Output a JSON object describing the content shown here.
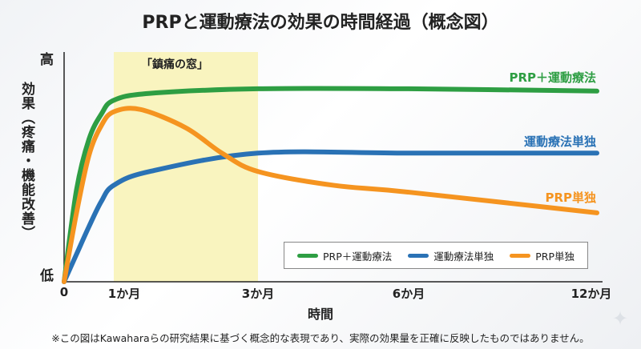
{
  "title": "PRPと運動療法の効果の時間経過（概念図）",
  "colors": {
    "green": "#2e9e43",
    "blue": "#2a72b5",
    "orange": "#f59420",
    "window": "#f8f3b8"
  },
  "chart_data": {
    "type": "line",
    "title": "PRPと運動療法の効果の時間経過（概念図）",
    "xlabel": "時間",
    "ylabel": "効果（疼痛・機能改善）",
    "y_tick_labels": {
      "low": "低",
      "high": "高"
    },
    "ylim": [
      0,
      100
    ],
    "x_ticks": [
      {
        "value": 0,
        "label": "0"
      },
      {
        "value": 1,
        "label": "1か月"
      },
      {
        "value": 3,
        "label": "3か月"
      },
      {
        "value": 6,
        "label": "6か月"
      },
      {
        "value": 12,
        "label": "12か月"
      }
    ],
    "xlim": [
      0,
      12
    ],
    "shaded_region": {
      "from": 1,
      "to": 3,
      "label": "「鎮痛の窓」"
    },
    "series": [
      {
        "name": "PRP＋運動療法",
        "color": "#2e9e43",
        "x": [
          0,
          0.25,
          0.5,
          0.75,
          1,
          1.5,
          3,
          6,
          12
        ],
        "values": [
          0,
          40,
          62,
          73,
          79,
          82,
          84,
          84,
          83
        ]
      },
      {
        "name": "運動療法単独",
        "color": "#2a72b5",
        "x": [
          0,
          0.25,
          0.5,
          0.75,
          1,
          1.5,
          3,
          6,
          12
        ],
        "values": [
          0,
          12,
          24,
          35,
          42,
          48,
          56,
          56,
          56
        ]
      },
      {
        "name": "PRP単独",
        "color": "#f59420",
        "x": [
          0,
          0.25,
          0.5,
          0.75,
          1,
          1.37,
          2,
          2.5,
          3,
          4.5,
          6,
          12
        ],
        "values": [
          0,
          30,
          55,
          68,
          74,
          75,
          67,
          56,
          48,
          42,
          39,
          30
        ]
      }
    ],
    "legend": "bottom-right"
  },
  "note": "※この図はKawaharaらの研究結果に基づく概念的な表現であり、実際の効果量を正確に反映したものではありません。"
}
